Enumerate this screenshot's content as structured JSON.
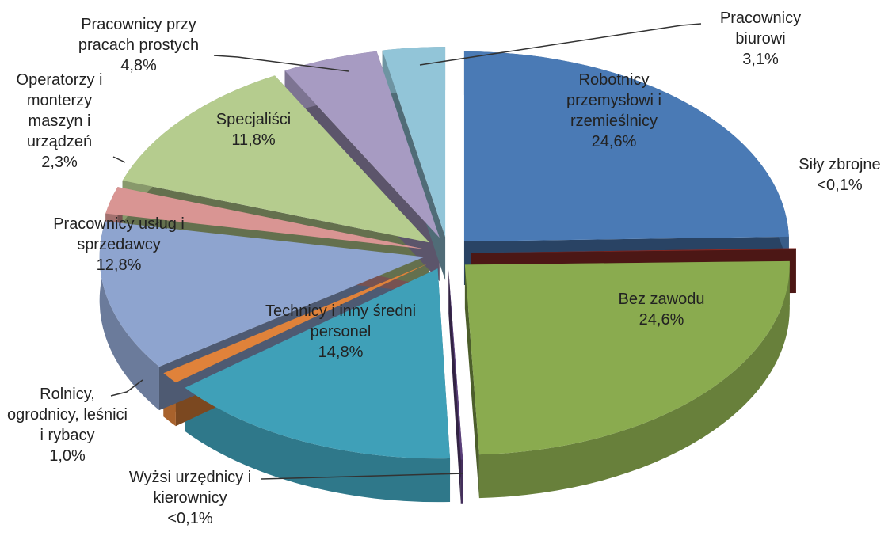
{
  "chart_data": {
    "type": "pie",
    "categories": [
      "Robotnicy przemysłowi i rzemieślnicy",
      "Siły zbrojne",
      "Bez zawodu",
      "Wyżsi urzędnicy i kierownicy",
      "Technicy i inny średni personel",
      "Rolnicy, ogrodnicy, leśnici i rybacy",
      "Pracownicy usług i sprzedawcy",
      "Operatorzy i monterzy maszyn i urządzeń",
      "Specjaliści",
      "Pracownicy przy pracach prostych",
      "Pracownicy biurowi"
    ],
    "values": [
      24.6,
      0.1,
      24.6,
      0.1,
      14.8,
      1.0,
      12.8,
      2.3,
      11.8,
      4.8,
      3.1
    ],
    "value_labels": [
      "24,6%",
      "<0,1%",
      "24,6%",
      "<0,1%",
      "14,8%",
      "1,0%",
      "12,8%",
      "2,3%",
      "11,8%",
      "4,8%",
      "3,1%"
    ],
    "colors": [
      "#4a7ab5",
      "#8b2a26",
      "#8aab4f",
      "#5a3f7a",
      "#3fa0b8",
      "#e0823a",
      "#8ea4cf",
      "#d99593",
      "#b5cc8e",
      "#a79bc2",
      "#92c5d8"
    ]
  }
}
